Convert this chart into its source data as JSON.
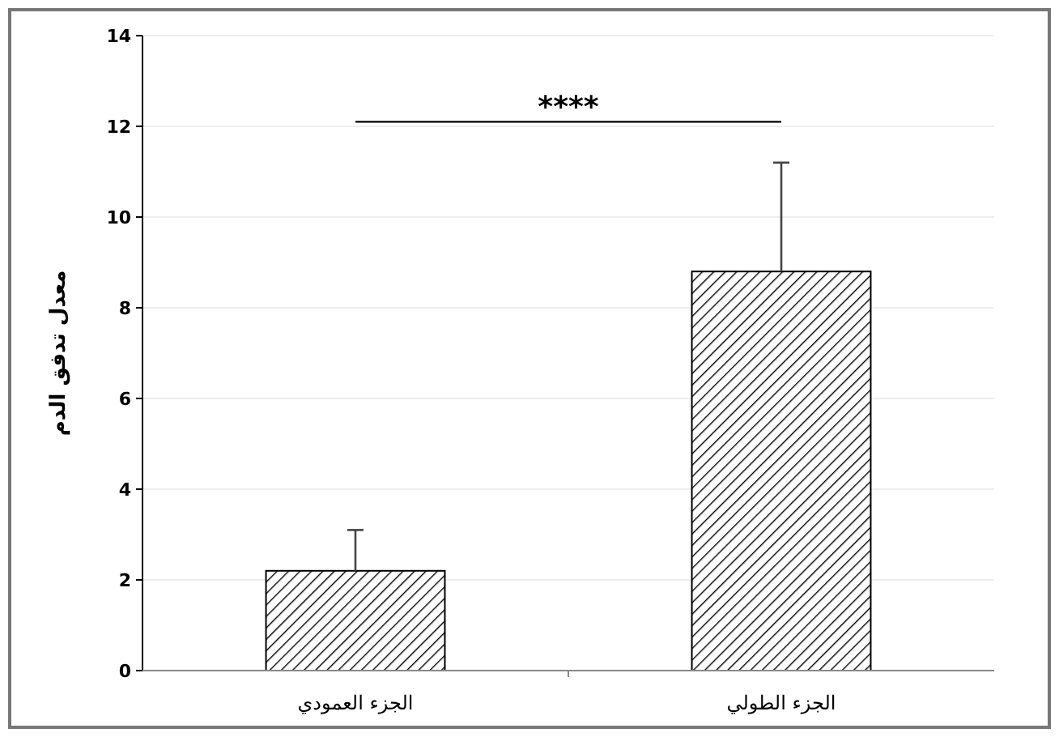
{
  "chart_data": {
    "type": "bar",
    "ylabel": "معدل تدفق الدم",
    "categories": [
      "الجزء العمودي",
      "الجزء الطولي"
    ],
    "values": [
      2.2,
      8.8
    ],
    "errors": [
      [
        2.2,
        3.1
      ],
      [
        8.8,
        11.2
      ]
    ],
    "color": "#000000",
    "ylim": [
      0,
      14
    ],
    "yticks": [
      0,
      2,
      4,
      6,
      8,
      10,
      12,
      14
    ],
    "grid": "y",
    "annotations": [
      "****"
    ]
  }
}
